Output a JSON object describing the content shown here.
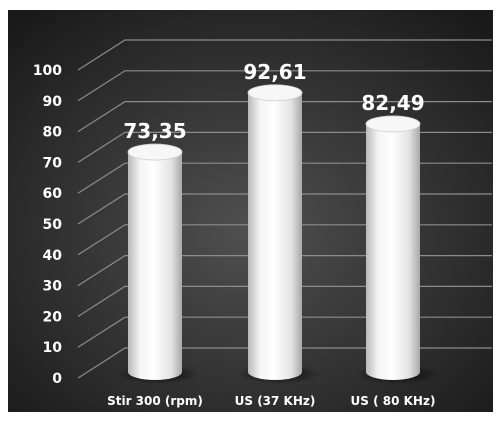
{
  "chart_data": {
    "type": "bar",
    "title": "",
    "xlabel": "",
    "ylabel": "",
    "categories": [
      "Stir 300 (rpm)",
      "US (37 KHz)",
      "US ( 80 KHz)"
    ],
    "values": [
      73.35,
      92.61,
      82.49
    ],
    "data_labels": [
      "73,35",
      "92,61",
      "82,49"
    ],
    "ylim": [
      0,
      100
    ],
    "yticks": [
      0,
      10,
      20,
      30,
      40,
      50,
      60,
      70,
      80,
      90,
      100
    ],
    "grid": true,
    "legend": "none",
    "style": "3d-cylinder",
    "colors": {
      "background": "#2f2f2f",
      "bar": "#ffffff",
      "grid": "#8c8c8c",
      "text": "#ffffff"
    }
  }
}
